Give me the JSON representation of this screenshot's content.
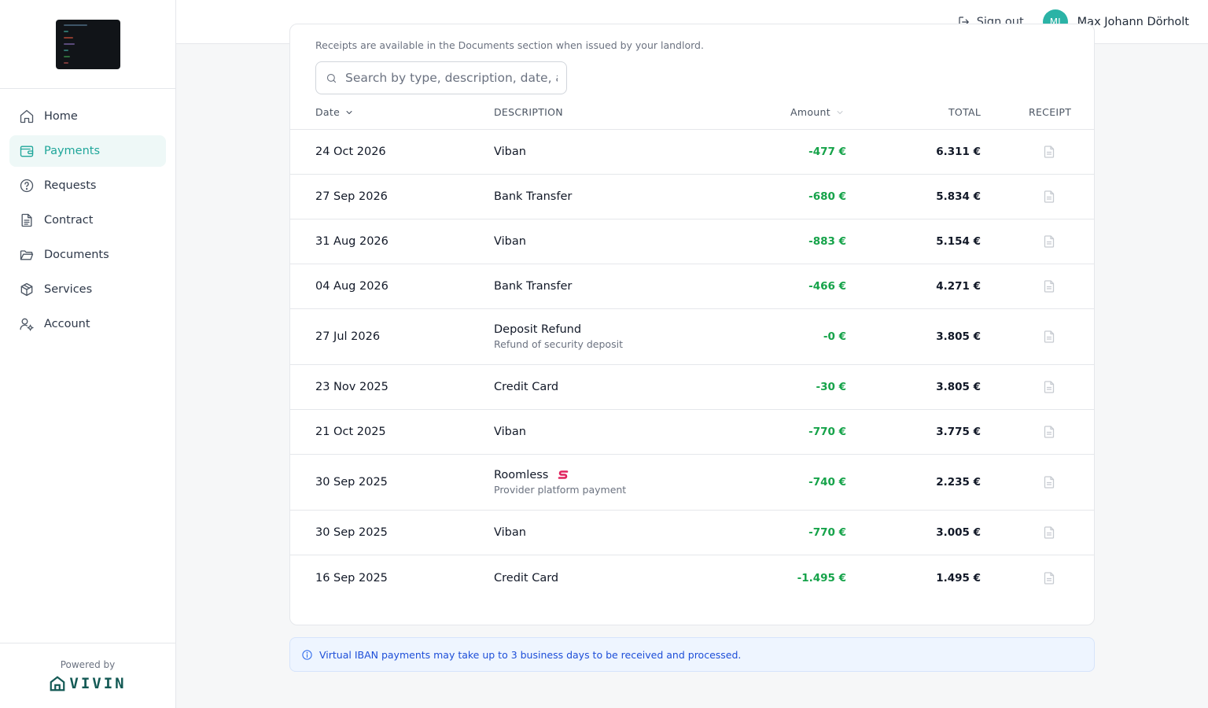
{
  "sidebar": {
    "items": [
      {
        "label": "Home",
        "icon": "home-icon",
        "active": false
      },
      {
        "label": "Payments",
        "icon": "wallet-icon",
        "active": true
      },
      {
        "label": "Requests",
        "icon": "help-circle-icon",
        "active": false
      },
      {
        "label": "Contract",
        "icon": "file-text-icon",
        "active": false
      },
      {
        "label": "Documents",
        "icon": "folder-open-icon",
        "active": false
      },
      {
        "label": "Services",
        "icon": "package-icon",
        "active": false
      },
      {
        "label": "Account",
        "icon": "user-gear-icon",
        "active": false
      }
    ],
    "powered_by": "Powered by",
    "brand": "VIVIN"
  },
  "header": {
    "signout_label": "Sign out",
    "avatar_initials": "MJ",
    "user_name": "Max Johann Dörholt"
  },
  "payments": {
    "receipts_note": "Receipts are available in the Documents section when issued by your landlord.",
    "search_placeholder": "Search by type, description, date, amount",
    "columns": {
      "date": "Date",
      "description": "DESCRIPTION",
      "amount": "Amount",
      "total": "TOTAL",
      "receipt": "RECEIPT"
    },
    "rows": [
      {
        "date": "24 Oct 2026",
        "description": "Viban",
        "sub": "",
        "amount": "-477 €",
        "total": "6.311 €"
      },
      {
        "date": "27 Sep 2026",
        "description": "Bank Transfer",
        "sub": "",
        "amount": "-680 €",
        "total": "5.834 €"
      },
      {
        "date": "31 Aug 2026",
        "description": "Viban",
        "sub": "",
        "amount": "-883 €",
        "total": "5.154 €"
      },
      {
        "date": "04 Aug 2026",
        "description": "Bank Transfer",
        "sub": "",
        "amount": "-466 €",
        "total": "4.271 €"
      },
      {
        "date": "27 Jul 2026",
        "description": "Deposit Refund",
        "sub": "Refund of security deposit",
        "amount": "-0 €",
        "total": "3.805 €"
      },
      {
        "date": "23 Nov 2025",
        "description": "Credit Card",
        "sub": "",
        "amount": "-30 €",
        "total": "3.805 €"
      },
      {
        "date": "21 Oct 2025",
        "description": "Viban",
        "sub": "",
        "amount": "-770 €",
        "total": "3.775 €"
      },
      {
        "date": "30 Sep 2025",
        "description": "Roomless",
        "sub": "Provider platform payment",
        "amount": "-740 €",
        "total": "2.235 €",
        "provider_icon": "roomless-logo-icon"
      },
      {
        "date": "30 Sep 2025",
        "description": "Viban",
        "sub": "",
        "amount": "-770 €",
        "total": "3.005 €"
      },
      {
        "date": "16 Sep 2025",
        "description": "Credit Card",
        "sub": "",
        "amount": "-1.495 €",
        "total": "1.495 €"
      }
    ]
  },
  "info_banner": "Virtual IBAN payments may take up to 3 business days to be received and processed.",
  "colors": {
    "accent": "#1fa69a",
    "amount_green": "#16a34a",
    "info_blue": "#1d4ed8",
    "roomless_red": "#e0245e"
  }
}
